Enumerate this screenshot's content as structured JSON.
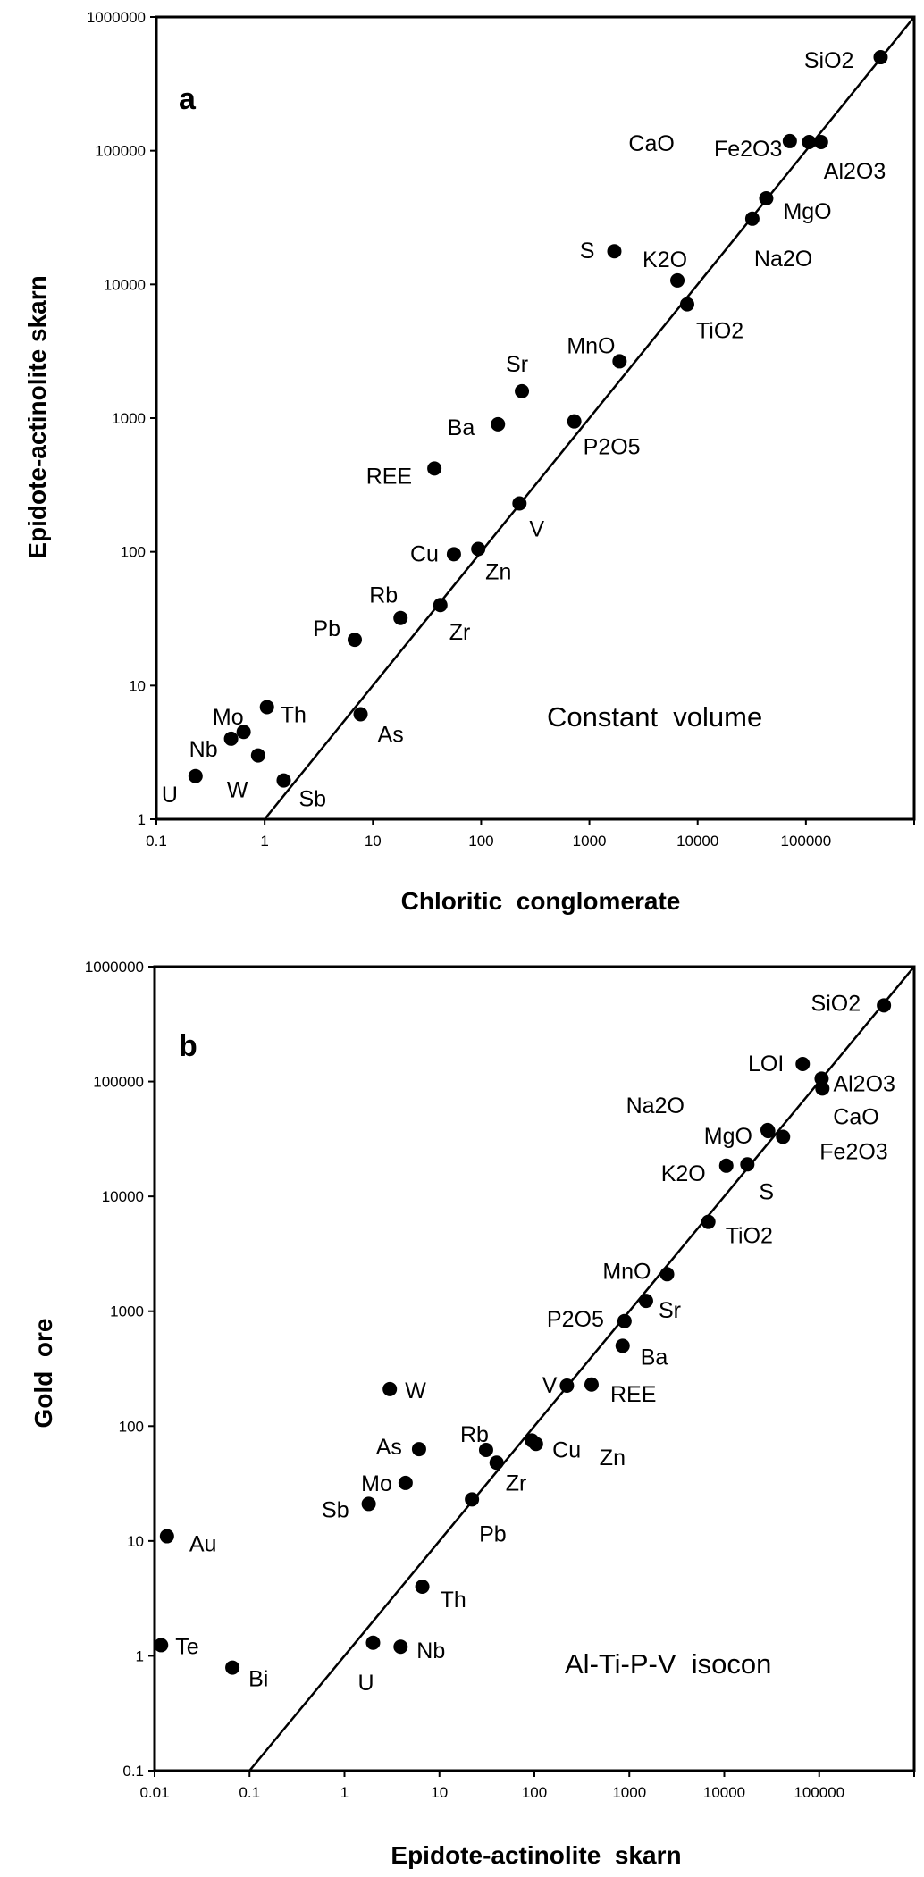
{
  "chart_data": [
    {
      "type": "scatter",
      "panel_label": "a",
      "annotation": "Constant  volume",
      "xlabel": "Chloritic  conglomerate",
      "ylabel": "Epidote-actinolite skarn",
      "xscale": "log",
      "yscale": "log",
      "xlim": [
        0.1,
        1000000
      ],
      "ylim": [
        1,
        1000000
      ],
      "x_ticks": [
        "0.1",
        "1",
        "10",
        "100",
        "1000",
        "10000",
        "100000"
      ],
      "y_ticks": [
        "1",
        "10",
        "100",
        "1000",
        "10000",
        "100000",
        "1000000"
      ],
      "grid": false,
      "reference_line": {
        "slope": 1,
        "from": [
          1,
          1
        ],
        "to": [
          1000000,
          1000000
        ]
      },
      "points": [
        {
          "label": "SiO2",
          "x": 490000,
          "y": 500000
        },
        {
          "label": "CaO",
          "x": 71000,
          "y": 118000
        },
        {
          "label": "Fe2O3",
          "x": 107000,
          "y": 116000
        },
        {
          "label": "Al2O3",
          "x": 138000,
          "y": 116000
        },
        {
          "label": "MgO",
          "x": 43000,
          "y": 44000
        },
        {
          "label": "Na2O",
          "x": 32000,
          "y": 31000
        },
        {
          "label": "S",
          "x": 1700,
          "y": 17700
        },
        {
          "label": "K2O",
          "x": 6500,
          "y": 10700
        },
        {
          "label": "TiO2",
          "x": 8000,
          "y": 7100
        },
        {
          "label": "MnO",
          "x": 1900,
          "y": 2660
        },
        {
          "label": "Sr",
          "x": 238,
          "y": 1590
        },
        {
          "label": "Ba",
          "x": 143,
          "y": 900
        },
        {
          "label": "P2O5",
          "x": 725,
          "y": 945
        },
        {
          "label": "REE",
          "x": 37,
          "y": 420
        },
        {
          "label": "V",
          "x": 226,
          "y": 230
        },
        {
          "label": "Cu",
          "x": 56,
          "y": 96
        },
        {
          "label": "Zn",
          "x": 94,
          "y": 105
        },
        {
          "label": "Rb",
          "x": 18,
          "y": 32
        },
        {
          "label": "Zr",
          "x": 42,
          "y": 40
        },
        {
          "label": "Pb",
          "x": 6.8,
          "y": 22
        },
        {
          "label": "As",
          "x": 7.7,
          "y": 6.1
        },
        {
          "label": "Th",
          "x": 1.05,
          "y": 6.9
        },
        {
          "label": "Mo",
          "x": 0.64,
          "y": 4.5
        },
        {
          "label": "Nb",
          "x": 0.49,
          "y": 4.0
        },
        {
          "label": "W",
          "x": 0.87,
          "y": 3.0
        },
        {
          "label": "U",
          "x": 0.23,
          "y": 2.1
        },
        {
          "label": "Sb",
          "x": 1.5,
          "y": 1.95
        }
      ]
    },
    {
      "type": "scatter",
      "panel_label": "b",
      "annotation": "Al-Ti-P-V  isocon",
      "xlabel": "Epidote-actinolite  skarn",
      "ylabel": "Gold  ore",
      "xscale": "log",
      "yscale": "log",
      "xlim": [
        0.01,
        1000000
      ],
      "ylim": [
        0.1,
        1000000
      ],
      "x_ticks": [
        "0.01",
        "0.1",
        "1",
        "10",
        "100",
        "1000",
        "10000",
        "100000"
      ],
      "y_ticks": [
        "0.1",
        "1",
        "10",
        "100",
        "1000",
        "10000",
        "100000",
        "1000000"
      ],
      "grid": false,
      "reference_line": {
        "slope": 1,
        "from": [
          0.1,
          0.1
        ],
        "to": [
          1000000,
          1000000
        ]
      },
      "points": [
        {
          "label": "SiO2",
          "x": 480000,
          "y": 460000
        },
        {
          "label": "LOI",
          "x": 67000,
          "y": 142000
        },
        {
          "label": "Al2O3",
          "x": 106000,
          "y": 106000
        },
        {
          "label": "CaO",
          "x": 108000,
          "y": 87000
        },
        {
          "label": "Na2O",
          "x": 29000,
          "y": 37000
        },
        {
          "label": "MgO",
          "x": 28600,
          "y": 37800
        },
        {
          "label": "Fe2O3",
          "x": 41600,
          "y": 33000
        },
        {
          "label": "K2O",
          "x": 10500,
          "y": 18500
        },
        {
          "label": "S",
          "x": 17500,
          "y": 19000
        },
        {
          "label": "TiO2",
          "x": 6800,
          "y": 6000
        },
        {
          "label": "MnO",
          "x": 2500,
          "y": 2100
        },
        {
          "label": "Sr",
          "x": 1500,
          "y": 1230
        },
        {
          "label": "P2O5",
          "x": 890,
          "y": 820
        },
        {
          "label": "Ba",
          "x": 850,
          "y": 500
        },
        {
          "label": "V",
          "x": 220,
          "y": 225
        },
        {
          "label": "REE",
          "x": 400,
          "y": 230
        },
        {
          "label": "Cu",
          "x": 94,
          "y": 75
        },
        {
          "label": "Zn",
          "x": 104,
          "y": 70
        },
        {
          "label": "Rb",
          "x": 31,
          "y": 62
        },
        {
          "label": "Zr",
          "x": 40,
          "y": 48
        },
        {
          "label": "Pb",
          "x": 22,
          "y": 23
        },
        {
          "label": "W",
          "x": 3.0,
          "y": 210
        },
        {
          "label": "As",
          "x": 6.1,
          "y": 63
        },
        {
          "label": "Mo",
          "x": 4.4,
          "y": 32
        },
        {
          "label": "Sb",
          "x": 1.8,
          "y": 21
        },
        {
          "label": "Au",
          "x": 0.0135,
          "y": 11
        },
        {
          "label": "Te",
          "x": 0.0117,
          "y": 1.24
        },
        {
          "label": "Bi",
          "x": 0.066,
          "y": 0.79
        },
        {
          "label": "Th",
          "x": 6.6,
          "y": 4.0
        },
        {
          "label": "U",
          "x": 2.0,
          "y": 1.3
        },
        {
          "label": "Nb",
          "x": 3.9,
          "y": 1.2
        }
      ]
    }
  ]
}
